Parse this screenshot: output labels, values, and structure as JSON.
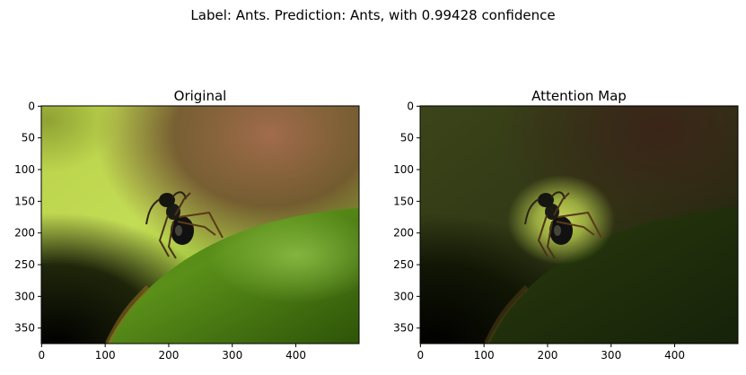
{
  "figure": {
    "suptitle": "Label: Ants. Prediction: Ants, with 0.99428 confidence"
  },
  "chart_data": [
    {
      "type": "image",
      "title": "Original",
      "image_width": 500,
      "image_height": 375,
      "x_ticks": [
        0,
        100,
        200,
        300,
        400
      ],
      "y_ticks": [
        0,
        50,
        100,
        150,
        200,
        250,
        300,
        350
      ],
      "xlim": [
        -0.5,
        499.5
      ],
      "ylim": [
        374.5,
        -0.5
      ],
      "grid": false,
      "content": "photo of a black ant on a green leaf, yellow-green and brown blurred background"
    },
    {
      "type": "image",
      "title": "Attention Map",
      "image_width": 500,
      "image_height": 375,
      "x_ticks": [
        0,
        100,
        200,
        300,
        400
      ],
      "y_ticks": [
        0,
        50,
        100,
        150,
        200,
        250,
        300,
        350
      ],
      "xlim": [
        -0.5,
        499.5
      ],
      "ylim": [
        374.5,
        -0.5
      ],
      "grid": false,
      "content": "same photo darkened except a bright glow around the ant"
    }
  ]
}
